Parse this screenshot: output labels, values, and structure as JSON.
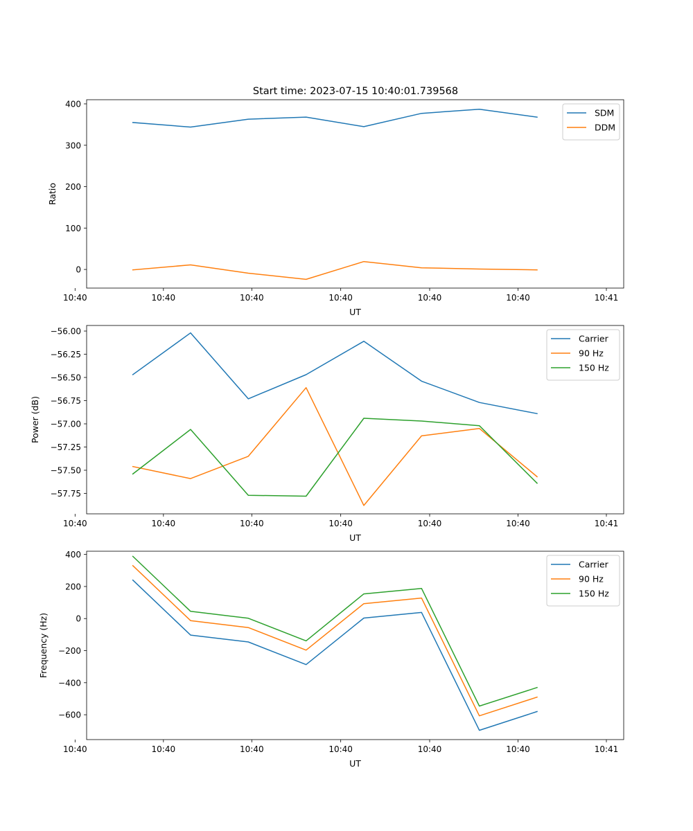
{
  "figure_title": "Start time: 2023-07-15 10:40:01.739568",
  "chart_data": [
    {
      "type": "line",
      "title": "Start time: 2023-07-15 10:40:01.739568",
      "xlabel": "UT",
      "ylabel": "Ratio",
      "x": [
        1,
        2,
        3,
        4,
        5,
        6,
        7,
        8
      ],
      "xlim": [
        0.2,
        9.5
      ],
      "x_ticks": [
        {
          "x": 0,
          "label": "10:40"
        },
        {
          "x": 1.53,
          "label": "10:40"
        },
        {
          "x": 3.06,
          "label": "10:40"
        },
        {
          "x": 4.6,
          "label": "10:40"
        },
        {
          "x": 6.14,
          "label": "10:40"
        },
        {
          "x": 7.67,
          "label": "10:40"
        },
        {
          "x": 9.2,
          "label": "10:41"
        }
      ],
      "ylim": [
        -45,
        410
      ],
      "y_ticks": [
        0,
        100,
        200,
        300,
        400
      ],
      "y_tick_labels": [
        "0",
        "100",
        "200",
        "300",
        "400"
      ],
      "legend_position": "top-right",
      "series": [
        {
          "name": "SDM",
          "color": "#1f77b4",
          "values": [
            355,
            344,
            363,
            368,
            345,
            377,
            387,
            368
          ]
        },
        {
          "name": "DDM",
          "color": "#ff7f0e",
          "values": [
            -1,
            11,
            -9,
            -24,
            19,
            4,
            1,
            -1
          ]
        }
      ]
    },
    {
      "type": "line",
      "xlabel": "UT",
      "ylabel": "Power (dB)",
      "x": [
        1,
        2,
        3,
        4,
        5,
        6,
        7,
        8
      ],
      "xlim": [
        0.2,
        9.5
      ],
      "x_ticks": [
        {
          "x": 0,
          "label": "10:40"
        },
        {
          "x": 1.53,
          "label": "10:40"
        },
        {
          "x": 3.06,
          "label": "10:40"
        },
        {
          "x": 4.6,
          "label": "10:40"
        },
        {
          "x": 6.14,
          "label": "10:40"
        },
        {
          "x": 7.67,
          "label": "10:40"
        },
        {
          "x": 9.2,
          "label": "10:41"
        }
      ],
      "ylim": [
        -57.97,
        -55.94
      ],
      "y_ticks": [
        -56.0,
        -56.25,
        -56.5,
        -56.75,
        -57.0,
        -57.25,
        -57.5,
        -57.75
      ],
      "y_tick_labels": [
        "−56.00",
        "−56.25",
        "−56.50",
        "−56.75",
        "−57.00",
        "−57.25",
        "−57.50",
        "−57.75"
      ],
      "legend_position": "top-right",
      "series": [
        {
          "name": "Carrier",
          "color": "#1f77b4",
          "values": [
            -56.47,
            -56.02,
            -56.73,
            -56.47,
            -56.11,
            -56.54,
            -56.77,
            -56.89
          ]
        },
        {
          "name": "90 Hz",
          "color": "#ff7f0e",
          "values": [
            -57.46,
            -57.59,
            -57.35,
            -56.61,
            -57.88,
            -57.13,
            -57.05,
            -57.57
          ]
        },
        {
          "name": "150 Hz",
          "color": "#2ca02c",
          "values": [
            -57.54,
            -57.06,
            -57.77,
            -57.78,
            -56.94,
            -56.97,
            -57.02,
            -57.64
          ]
        }
      ]
    },
    {
      "type": "line",
      "xlabel": "UT",
      "ylabel": "Frequency (Hz)",
      "x": [
        1,
        2,
        3,
        4,
        5,
        6,
        7,
        8
      ],
      "xlim": [
        0.2,
        9.5
      ],
      "x_ticks": [
        {
          "x": 0,
          "label": "10:40"
        },
        {
          "x": 1.53,
          "label": "10:40"
        },
        {
          "x": 3.06,
          "label": "10:40"
        },
        {
          "x": 4.6,
          "label": "10:40"
        },
        {
          "x": 6.14,
          "label": "10:40"
        },
        {
          "x": 7.67,
          "label": "10:40"
        },
        {
          "x": 9.2,
          "label": "10:41"
        }
      ],
      "ylim": [
        -755,
        420
      ],
      "y_ticks": [
        400,
        200,
        0,
        -200,
        -400,
        -600
      ],
      "y_tick_labels": [
        "400",
        "200",
        "0",
        "−200",
        "−400",
        "−600"
      ],
      "legend_position": "top-right",
      "series": [
        {
          "name": "Carrier",
          "color": "#1f77b4",
          "values": [
            240,
            -103,
            -146,
            -287,
            3,
            38,
            -697,
            -580
          ]
        },
        {
          "name": "90 Hz",
          "color": "#ff7f0e",
          "values": [
            330,
            -13,
            -56,
            -197,
            93,
            128,
            -607,
            -490
          ]
        },
        {
          "name": "150 Hz",
          "color": "#2ca02c",
          "values": [
            388,
            45,
            2,
            -139,
            154,
            188,
            -546,
            -430
          ]
        }
      ]
    }
  ]
}
